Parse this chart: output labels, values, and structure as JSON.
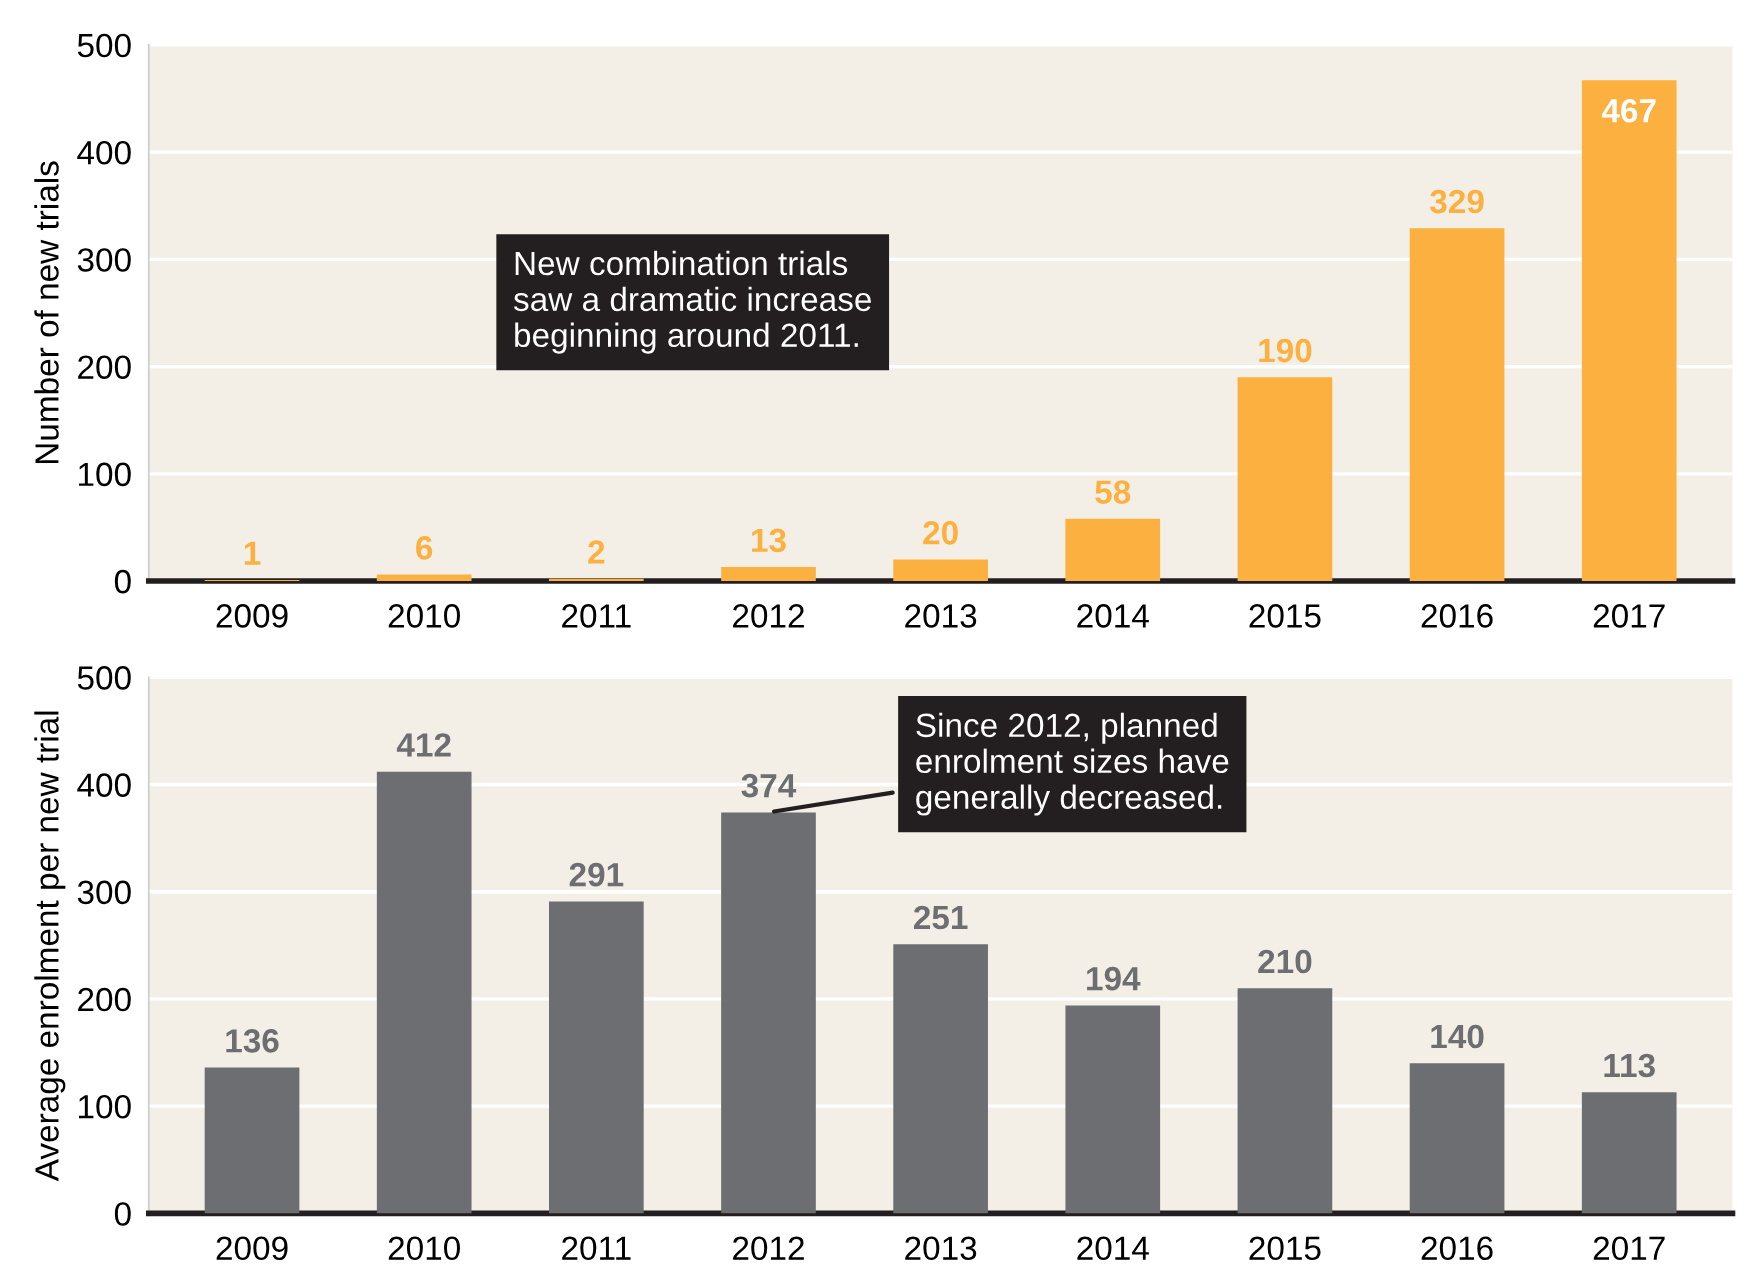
{
  "chart_data": [
    {
      "type": "bar",
      "ylabel": "Number of new trials",
      "categories": [
        "2009",
        "2010",
        "2011",
        "2012",
        "2013",
        "2014",
        "2015",
        "2016",
        "2017"
      ],
      "series": [
        {
          "color": "#fbb040",
          "values": [
            1,
            6,
            2,
            13,
            20,
            58,
            190,
            329,
            467
          ]
        }
      ],
      "ylim": [
        0,
        500
      ],
      "yticks": [
        0,
        100,
        200,
        300,
        400,
        500
      ],
      "grid": "y",
      "data_labels": true,
      "annotations": [
        "New combination trials\nsaw a dramatic increase\nbeginning around 2011."
      ]
    },
    {
      "type": "bar",
      "ylabel": "Average enrolment per new trial",
      "categories": [
        "2009",
        "2010",
        "2011",
        "2012",
        "2013",
        "2014",
        "2015",
        "2016",
        "2017"
      ],
      "series": [
        {
          "color": "#6d6e71",
          "values": [
            136,
            412,
            291,
            374,
            251,
            194,
            210,
            140,
            113
          ]
        }
      ],
      "ylim": [
        0,
        500
      ],
      "yticks": [
        0,
        100,
        200,
        300,
        400,
        500
      ],
      "grid": "y",
      "data_labels": true,
      "annotations": [
        {
          "text": "Since 2012, planned\nenrolment sizes have\ngenerally decreased.",
          "x": "2012",
          "y": 374
        }
      ]
    }
  ]
}
